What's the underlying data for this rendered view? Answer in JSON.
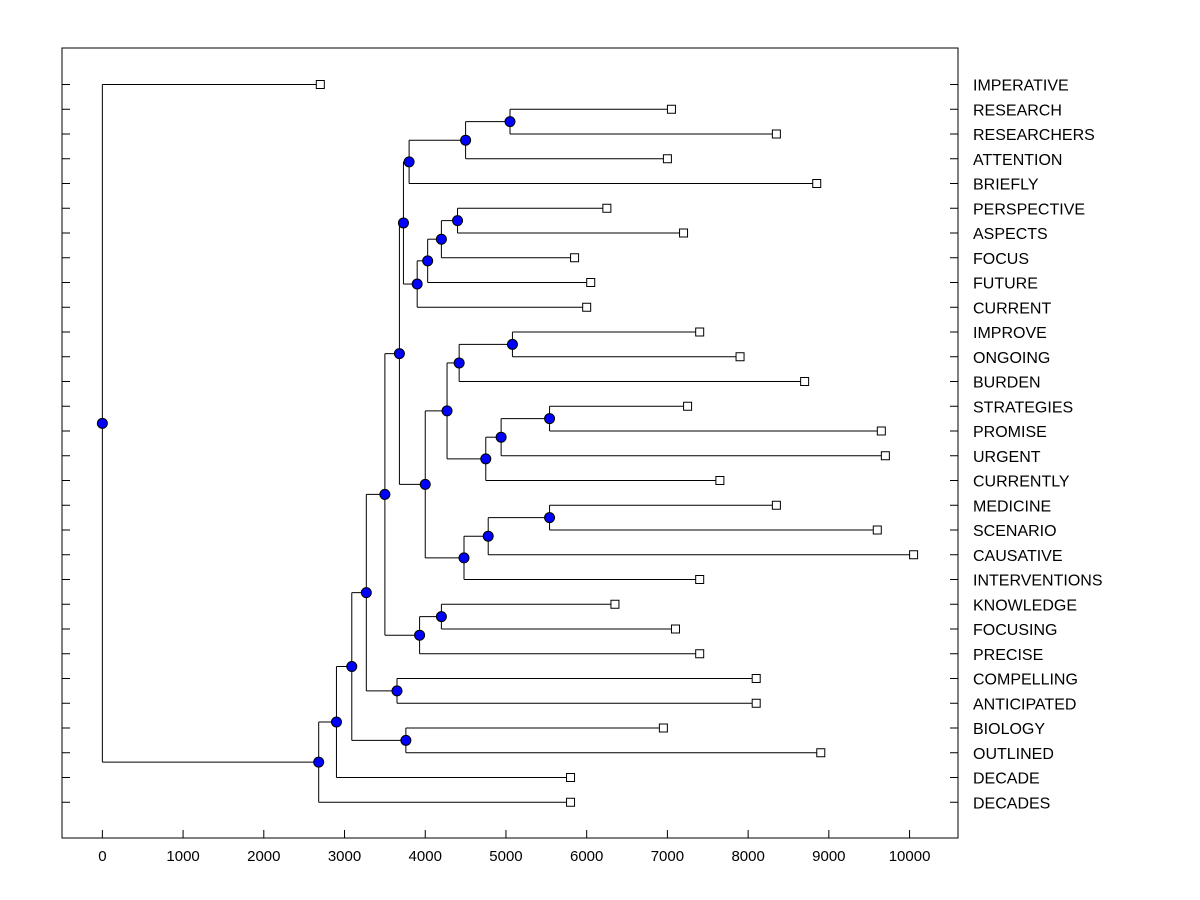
{
  "chart_data": {
    "type": "dendrogram",
    "xlabel": "",
    "ylabel": "",
    "xlim": [
      -500,
      10600
    ],
    "x_ticks": [
      "0",
      "1000",
      "2000",
      "3000",
      "4000",
      "5000",
      "6000",
      "7000",
      "8000",
      "9000",
      "10000"
    ],
    "x_tick_values": [
      0,
      1000,
      2000,
      3000,
      4000,
      5000,
      6000,
      7000,
      8000,
      9000,
      10000
    ],
    "leaf_marker": "open-square",
    "node_marker": "filled-circle",
    "node_color": "#0000ff",
    "line_color": "#000000",
    "leaves": [
      {
        "label": "IMPERATIVE",
        "x": 2700
      },
      {
        "label": "RESEARCH",
        "x": 7050
      },
      {
        "label": "RESEARCHERS",
        "x": 8350
      },
      {
        "label": "ATTENTION",
        "x": 7000
      },
      {
        "label": "BRIEFLY",
        "x": 8850
      },
      {
        "label": "PERSPECTIVE",
        "x": 6250
      },
      {
        "label": "ASPECTS",
        "x": 7200
      },
      {
        "label": "FOCUS",
        "x": 5850
      },
      {
        "label": "FUTURE",
        "x": 6050
      },
      {
        "label": "CURRENT",
        "x": 6000
      },
      {
        "label": "IMPROVE",
        "x": 7400
      },
      {
        "label": "ONGOING",
        "x": 7900
      },
      {
        "label": "BURDEN",
        "x": 8700
      },
      {
        "label": "STRATEGIES",
        "x": 7250
      },
      {
        "label": "PROMISE",
        "x": 9650
      },
      {
        "label": "URGENT",
        "x": 9700
      },
      {
        "label": "CURRENTLY",
        "x": 7650
      },
      {
        "label": "MEDICINE",
        "x": 8350
      },
      {
        "label": "SCENARIO",
        "x": 9600
      },
      {
        "label": "CAUSATIVE",
        "x": 10050
      },
      {
        "label": "INTERVENTIONS",
        "x": 7400
      },
      {
        "label": "KNOWLEDGE",
        "x": 6350
      },
      {
        "label": "FOCUSING",
        "x": 7100
      },
      {
        "label": "PRECISE",
        "x": 7400
      },
      {
        "label": "COMPELLING",
        "x": 8100
      },
      {
        "label": "ANTICIPATED",
        "x": 8100
      },
      {
        "label": "BIOLOGY",
        "x": 6950
      },
      {
        "label": "OUTLINED",
        "x": 8900
      },
      {
        "label": "DECADE",
        "x": 5800
      },
      {
        "label": "DECADES",
        "x": 5800
      }
    ],
    "merges": [
      {
        "a": "L1",
        "b": "L2",
        "x": 5050
      },
      {
        "a": "N0",
        "b": "L3",
        "x": 4500
      },
      {
        "a": "N1",
        "b": "L4",
        "x": 3800
      },
      {
        "a": "L5",
        "b": "L6",
        "x": 4400
      },
      {
        "a": "N3",
        "b": "L7",
        "x": 4200
      },
      {
        "a": "N4",
        "b": "L8",
        "x": 4030
      },
      {
        "a": "N5",
        "b": "L9",
        "x": 3900
      },
      {
        "a": "N2",
        "b": "N6",
        "x": 3730
      },
      {
        "a": "L10",
        "b": "L11",
        "x": 5080
      },
      {
        "a": "N8",
        "b": "L12",
        "x": 4420
      },
      {
        "a": "L13",
        "b": "L14",
        "x": 5540
      },
      {
        "a": "N10",
        "b": "L15",
        "x": 4940
      },
      {
        "a": "N11",
        "b": "L16",
        "x": 4750
      },
      {
        "a": "N9",
        "b": "N12",
        "x": 4270
      },
      {
        "a": "L17",
        "b": "L18",
        "x": 5540
      },
      {
        "a": "N14",
        "b": "L19",
        "x": 4780
      },
      {
        "a": "N15",
        "b": "L20",
        "x": 4480
      },
      {
        "a": "N13",
        "b": "N16",
        "x": 4000
      },
      {
        "a": "N7",
        "b": "N17",
        "x": 3680
      },
      {
        "a": "L21",
        "b": "L22",
        "x": 4200
      },
      {
        "a": "N19",
        "b": "L23",
        "x": 3930
      },
      {
        "a": "N18",
        "b": "N20",
        "x": 3500
      },
      {
        "a": "L24",
        "b": "L25",
        "x": 3650
      },
      {
        "a": "N21",
        "b": "N22",
        "x": 3270
      },
      {
        "a": "L26",
        "b": "L27",
        "x": 3760
      },
      {
        "a": "N23",
        "b": "N24",
        "x": 3090
      },
      {
        "a": "N25",
        "b": "L28",
        "x": 2900
      },
      {
        "a": "N26",
        "b": "L29",
        "x": 2680
      },
      {
        "a": "L0",
        "b": "N27",
        "x": 0
      }
    ]
  }
}
